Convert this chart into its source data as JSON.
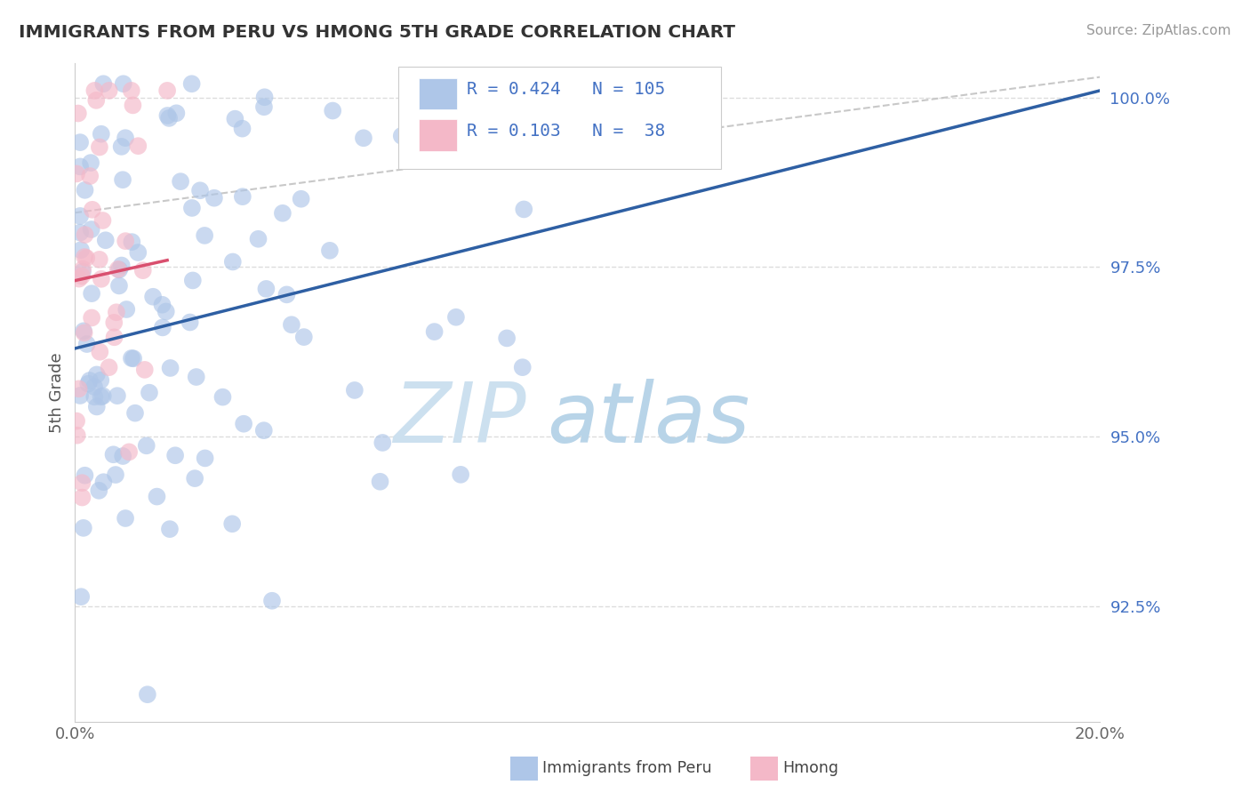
{
  "title": "IMMIGRANTS FROM PERU VS HMONG 5TH GRADE CORRELATION CHART",
  "source": "Source: ZipAtlas.com",
  "ylabel_label": "5th Grade",
  "legend_label1": "Immigrants from Peru",
  "legend_label2": "Hmong",
  "r1": 0.424,
  "n1": 105,
  "r2": 0.103,
  "n2": 38,
  "xlim": [
    0.0,
    0.2
  ],
  "ylim": [
    0.908,
    1.005
  ],
  "xtick_positions": [
    0.0,
    0.05,
    0.1,
    0.15,
    0.2
  ],
  "xtick_labels": [
    "0.0%",
    "",
    "",
    "",
    "20.0%"
  ],
  "ytick_positions": [
    0.925,
    0.95,
    0.975,
    1.0
  ],
  "ytick_labels": [
    "92.5%",
    "95.0%",
    "97.5%",
    "100.0%"
  ],
  "blue_color": "#aec6e8",
  "pink_color": "#f4b8c8",
  "blue_line_color": "#2e5fa3",
  "pink_line_color": "#d94f6e",
  "gray_dash_color": "#c8c8c8",
  "watermark_zip_color": "#cce0ef",
  "watermark_atlas_color": "#b8d4e8",
  "background_color": "#ffffff",
  "grid_color": "#dddddd",
  "blue_trend_x0": 0.0,
  "blue_trend_y0": 0.963,
  "blue_trend_x1": 0.2,
  "blue_trend_y1": 1.001,
  "pink_trend_x0": 0.0,
  "pink_trend_y0": 0.973,
  "pink_trend_x1": 0.018,
  "pink_trend_y1": 0.976,
  "gray_trend_x0": 0.0,
  "gray_trend_y0": 0.983,
  "gray_trend_x1": 0.2,
  "gray_trend_y1": 1.003
}
